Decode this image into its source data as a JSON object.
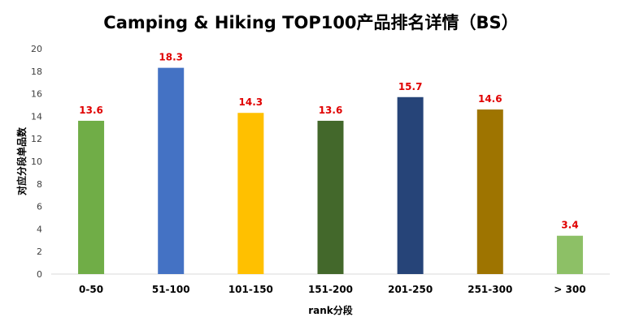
{
  "chart_data": {
    "type": "bar",
    "title": "Camping & Hiking TOP100产品排名详情（BS）",
    "xlabel": "rank分段",
    "ylabel": "对应分段单品数",
    "categories": [
      "0-50",
      "51-100",
      "101-150",
      "151-200",
      "201-250",
      "251-300",
      "> 300"
    ],
    "values": [
      13.6,
      18.3,
      14.3,
      13.6,
      15.7,
      14.6,
      3.4
    ],
    "data_labels": [
      "13.6",
      "18.3",
      "14.3",
      "13.6",
      "15.7",
      "14.6",
      "3.4"
    ],
    "colors": [
      "#70ad47",
      "#4472c4",
      "#ffc000",
      "#43682b",
      "#264478",
      "#9e7400",
      "#8dc066"
    ],
    "ylim": [
      0,
      20
    ],
    "yticks": [
      0,
      2,
      4,
      6,
      8,
      10,
      12,
      14,
      16,
      18,
      20
    ],
    "data_label_color": "#e00000",
    "grid": false,
    "legend": "none"
  }
}
